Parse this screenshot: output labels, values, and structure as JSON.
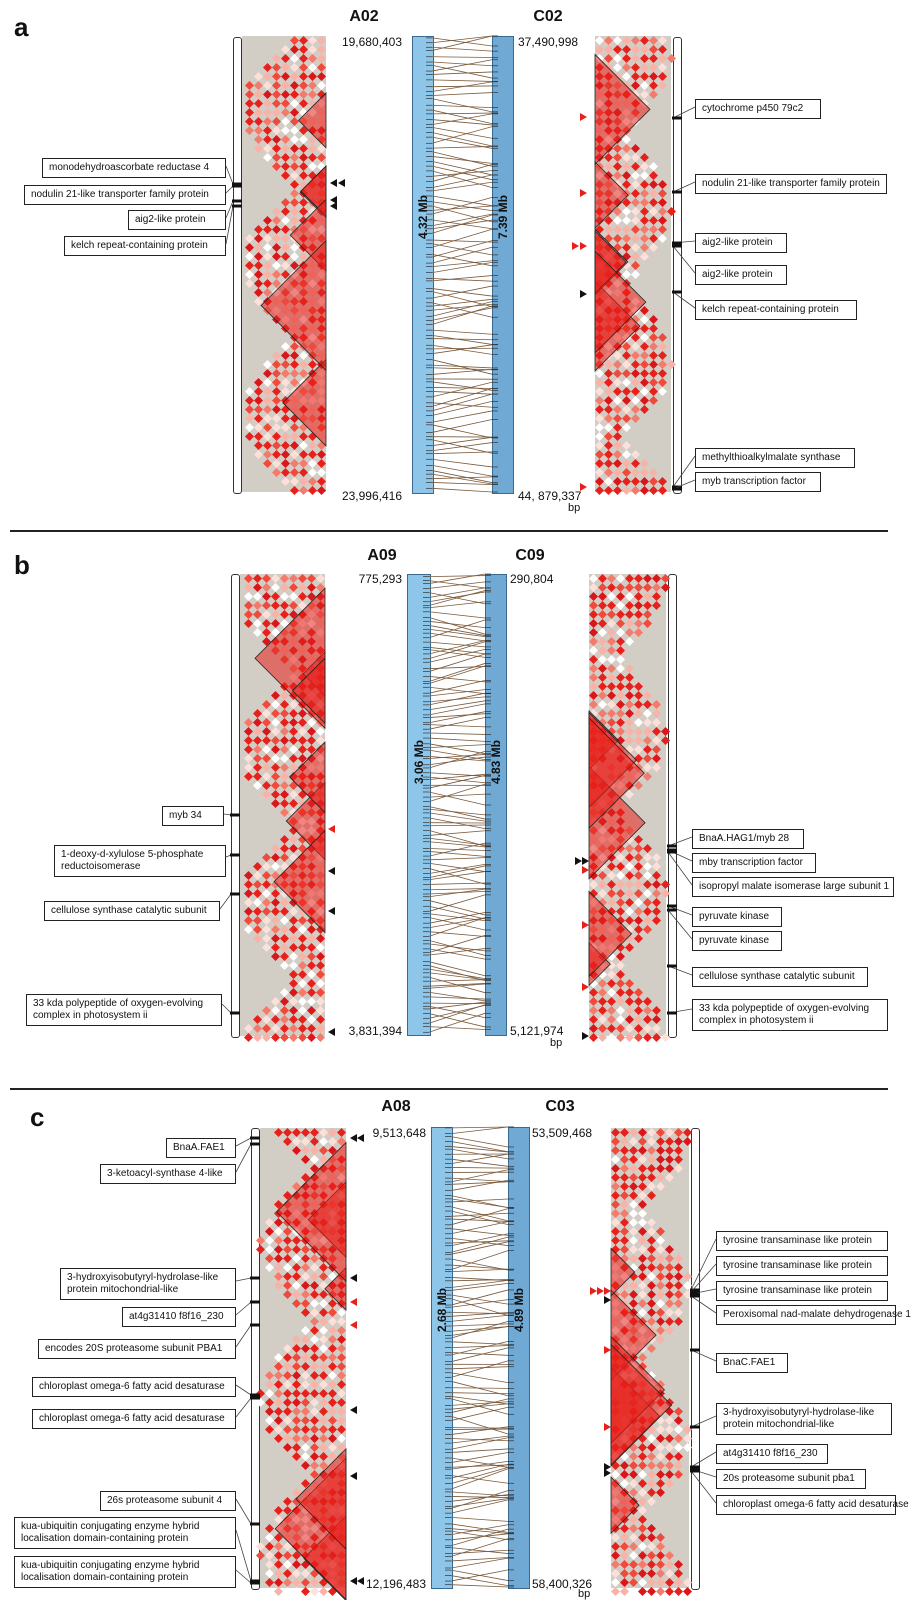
{
  "panels": [
    {
      "letter": "a",
      "left_chr": "A02",
      "right_chr": "C02",
      "left_top": "19,680,403",
      "left_bottom": "23,996,416",
      "right_top": "37,490,998",
      "right_bottom": "44, 879,337",
      "left_mb": "4.32 Mb",
      "right_mb": "7.39 Mb",
      "bp": "bp",
      "left_genes": [
        "monodehydroascorbate reductase 4",
        "nodulin 21-like transporter family protein",
        "aig2-like protein",
        "kelch repeat-containing protein"
      ],
      "right_genes": [
        "cytochrome p450 79c2",
        "nodulin 21-like transporter family protein",
        "aig2-like protein",
        "aig2-like protein",
        "kelch repeat-containing protein",
        "methylthioalkylmalate synthase",
        "myb transcription factor"
      ]
    },
    {
      "letter": "b",
      "left_chr": "A09",
      "right_chr": "C09",
      "left_top": "775,293",
      "left_bottom": "3,831,394",
      "right_top": "290,804",
      "right_bottom": "5,121,974",
      "left_mb": "3.06 Mb",
      "right_mb": "4.83 Mb",
      "bp": "bp",
      "left_genes": [
        "myb 34",
        "1-deoxy-d-xylulose 5-phosphate reductoisomerase",
        "cellulose synthase catalytic subunit",
        "33 kda polypeptide of oxygen-evolving complex in photosystem ii"
      ],
      "right_genes": [
        "BnaA.HAG1/myb 28",
        "mby transcription factor",
        "isopropyl malate isomerase large subunit 1",
        "pyruvate kinase",
        "pyruvate kinase",
        "cellulose synthase catalytic subunit",
        "33 kda polypeptide of oxygen-evolving complex in photosystem ii"
      ]
    },
    {
      "letter": "c",
      "left_chr": "A08",
      "right_chr": "C03",
      "left_top": "9,513,648",
      "left_bottom": "12,196,483",
      "right_top": "53,509,468",
      "right_bottom": "58,400,326",
      "left_mb": "2.68 Mb",
      "right_mb": "4.89 Mb",
      "bp": "bp",
      "left_genes": [
        "BnaA.FAE1",
        "3-ketoacyl-synthase 4-like",
        "3-hydroxyisobutyryl-hydrolase-like protein mitochondrial-like",
        "at4g31410 f8f16_230",
        "encodes 20S proteasome subunit PBA1",
        "chloroplast omega-6 fatty acid desaturase",
        "chloroplast omega-6 fatty acid desaturase",
        "26s proteasome subunit 4",
        "kua-ubiquitin conjugating enzyme hybrid localisation domain-containing protein",
        "kua-ubiquitin conjugating enzyme hybrid localisation domain-containing protein"
      ],
      "right_genes": [
        "tyrosine transaminase like protein",
        "tyrosine transaminase like protein",
        "tyrosine transaminase like protein",
        "Peroxisomal nad-malate dehydrogenase 1",
        "BnaC.FAE1",
        "3-hydroxyisobutyryl-hydrolase-like protein mitochondrial-like",
        "at4g31410 f8f16_230",
        "20s proteasome subunit pba1",
        "chloroplast omega-6 fatty acid desaturase"
      ]
    }
  ],
  "colors": {
    "heatmap_bg": "#d2cdc5",
    "ld_red": "#e8201c",
    "bar_left": "#8ec6ea",
    "bar_right": "#6fa9d4",
    "synteny_line": "#7a5a3c",
    "marker_red": "#e8201c",
    "marker_black": "#111111"
  }
}
